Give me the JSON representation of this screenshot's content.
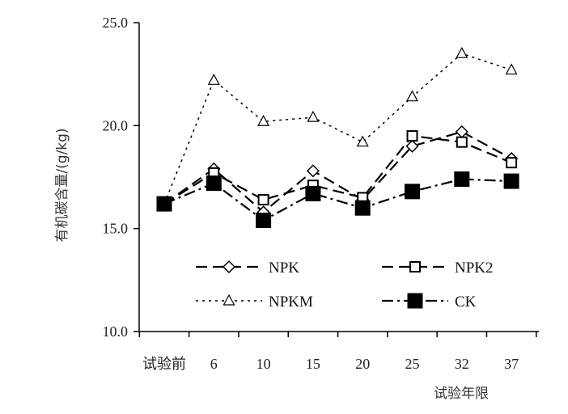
{
  "chart_data": {
    "type": "line",
    "categories": [
      "试验前",
      "6",
      "10",
      "15",
      "20",
      "25",
      "32",
      "37"
    ],
    "xlabel": "试验年限",
    "ylabel": "有机碳含量/(g/kg)",
    "ylim": [
      10.0,
      25.0
    ],
    "yticks": [
      "10.0",
      "15.0",
      "20.0",
      "25.0"
    ],
    "grid": false,
    "legend_position": "inside-bottom",
    "series": [
      {
        "name": "NPK",
        "marker": "diamond",
        "dash": "long",
        "color": "#000000",
        "values": [
          16.2,
          17.9,
          15.8,
          17.8,
          16.4,
          19.0,
          19.7,
          18.4
        ]
      },
      {
        "name": "NPK2",
        "marker": "square-open",
        "dash": "long",
        "color": "#000000",
        "values": [
          16.2,
          17.7,
          16.4,
          17.1,
          16.5,
          19.5,
          19.2,
          18.2
        ]
      },
      {
        "name": "NPKM",
        "marker": "triangle",
        "dash": "dotted",
        "color": "#000000",
        "values": [
          16.2,
          22.2,
          20.2,
          20.4,
          19.2,
          21.4,
          23.5,
          22.7
        ]
      },
      {
        "name": "CK",
        "marker": "square-filled",
        "dash": "dashdot",
        "color": "#000000",
        "values": [
          16.2,
          17.2,
          15.4,
          16.7,
          16.0,
          16.8,
          17.4,
          17.3
        ]
      }
    ]
  }
}
